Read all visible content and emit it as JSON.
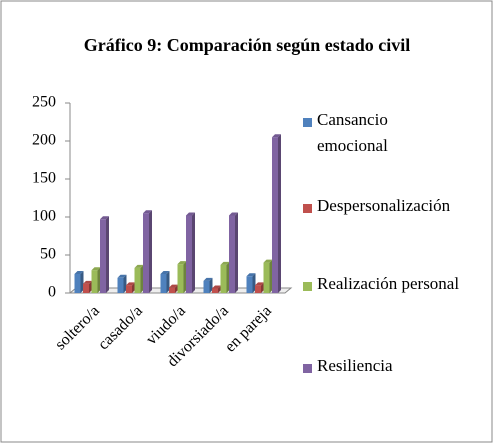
{
  "chart_data": {
    "type": "bar",
    "title": "Gráfico 9: Comparación según estado civil",
    "categories": [
      "soltero/a",
      "casado/a",
      "viudo/a",
      "divorsiado/a",
      "en pareja"
    ],
    "series": [
      {
        "name": "Cansancio emocional",
        "color": "#4f81bd",
        "values": [
          25,
          20,
          25,
          16,
          22
        ]
      },
      {
        "name": "Despersonalización",
        "color": "#c0504d",
        "values": [
          12,
          10,
          7,
          6,
          10
        ]
      },
      {
        "name": "Realización personal",
        "color": "#9bbb59",
        "values": [
          30,
          33,
          38,
          37,
          40
        ]
      },
      {
        "name": "Resiliencia",
        "color": "#8064a2",
        "values": [
          97,
          105,
          102,
          102,
          205
        ]
      }
    ],
    "ylim": [
      0,
      250
    ],
    "yticks": [
      0,
      50,
      100,
      150,
      200,
      250
    ],
    "grid": false,
    "legend": "right"
  }
}
